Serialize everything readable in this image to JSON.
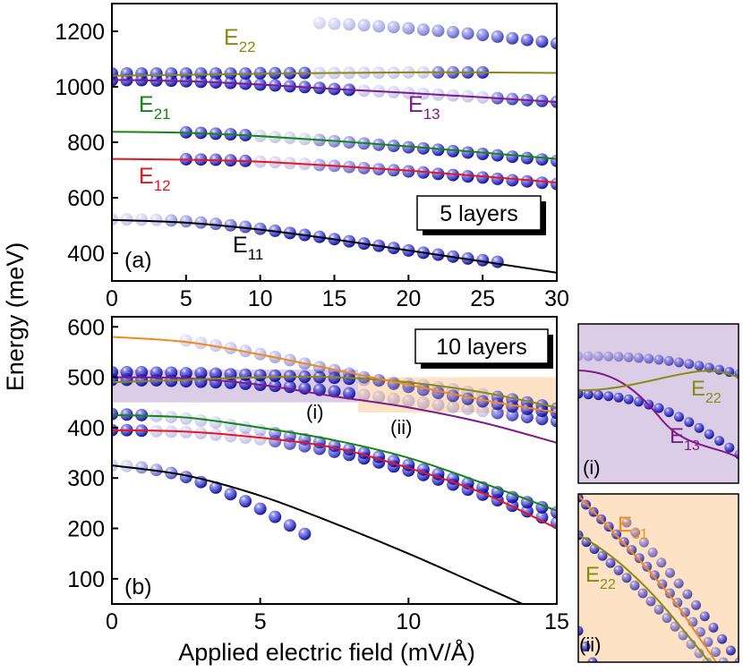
{
  "figure": {
    "ylabel": "Energy (meV)",
    "xlabel": "Applied electric field (mV/Å)"
  },
  "colors": {
    "dot": "#1a1ad6",
    "E11": "#000000",
    "E12": "#e8141e",
    "E21": "#118811",
    "E22": "#8a8a12",
    "E13": "#7f1a8a",
    "E31": "#f08a1a",
    "highlight_purple": "#dccde6",
    "highlight_orange": "#fde2c6"
  },
  "chart_data": [
    {
      "id": "a",
      "type": "scatter",
      "panel_label": "(a)",
      "title": "5 layers",
      "xlim": [
        0,
        30
      ],
      "ylim": [
        300,
        1300
      ],
      "xticks": [
        0,
        5,
        10,
        15,
        20,
        25,
        30
      ],
      "yticks": [
        400,
        600,
        800,
        1000,
        1200
      ],
      "lines": [
        {
          "name": "E11",
          "label_main": "E",
          "label_sub": "11",
          "x": [
            0,
            5,
            10,
            15,
            20,
            25,
            30
          ],
          "y": [
            520,
            510,
            485,
            450,
            410,
            370,
            330
          ]
        },
        {
          "name": "E12",
          "label_main": "E",
          "label_sub": "12",
          "x": [
            0,
            5,
            10,
            15,
            20,
            25,
            30
          ],
          "y": [
            740,
            737,
            730,
            715,
            698,
            677,
            655
          ]
        },
        {
          "name": "E21",
          "label_main": "E",
          "label_sub": "21",
          "x": [
            0,
            5,
            10,
            15,
            20,
            25,
            30
          ],
          "y": [
            838,
            834,
            822,
            805,
            785,
            763,
            740
          ]
        },
        {
          "name": "E22",
          "label_main": "E",
          "label_sub": "22",
          "x": [
            0,
            5,
            10,
            15,
            20,
            25,
            30
          ],
          "y": [
            1040,
            1043,
            1047,
            1050,
            1052,
            1052,
            1050
          ]
        },
        {
          "name": "E13",
          "label_main": "E",
          "label_sub": "13",
          "x": [
            0,
            5,
            10,
            15,
            20,
            25,
            30
          ],
          "y": [
            1025,
            1020,
            1008,
            992,
            978,
            962,
            945
          ]
        }
      ],
      "dot_series": [
        {
          "x": [
            0,
            1,
            2,
            3,
            4,
            5,
            6,
            7,
            8,
            9,
            10,
            11,
            12,
            13,
            14,
            15,
            16,
            17,
            18,
            19,
            20,
            21,
            22,
            23,
            24,
            25,
            26
          ],
          "y": [
            522,
            522,
            521,
            520,
            518,
            515,
            511,
            506,
            501,
            495,
            488,
            481,
            473,
            466,
            459,
            451,
            443,
            435,
            427,
            419,
            410,
            402,
            395,
            388,
            381,
            375,
            369
          ],
          "fade": [
            0,
            0.13,
            0.33
          ]
        },
        {
          "x": [
            5,
            6,
            7,
            8,
            9,
            10,
            11,
            12,
            13,
            14,
            15,
            16,
            17,
            18,
            19,
            20,
            21,
            22,
            23,
            24,
            25,
            26,
            27,
            28,
            29,
            30
          ],
          "y": [
            739,
            738,
            737,
            735,
            733,
            730,
            728,
            725,
            722,
            718,
            715,
            711,
            707,
            703,
            699,
            695,
            691,
            686,
            682,
            677,
            673,
            668,
            663,
            659,
            654,
            650
          ],
          "fade": [
            0.2,
            0.15,
            0.38
          ]
        },
        {
          "x": [
            5,
            6,
            7,
            8,
            9,
            10,
            11,
            12,
            13,
            14,
            15,
            16,
            17,
            18,
            19,
            20,
            21,
            22,
            23,
            24,
            25,
            26,
            27,
            28,
            29,
            30
          ],
          "y": [
            836,
            834,
            831,
            829,
            826,
            823,
            819,
            816,
            812,
            808,
            804,
            800,
            796,
            791,
            787,
            782,
            778,
            773,
            768,
            763,
            758,
            753,
            748,
            743,
            738,
            733
          ],
          "fade": [
            0.2,
            0.15,
            0.38
          ]
        },
        {
          "x": [
            0,
            1,
            2,
            3,
            4,
            5,
            6,
            7,
            8,
            9,
            10,
            11,
            12,
            13,
            14,
            15,
            16,
            17,
            18,
            19,
            20,
            21,
            22,
            23,
            24,
            25
          ],
          "y": [
            1048,
            1048,
            1048,
            1048,
            1048,
            1048,
            1048,
            1048,
            1048,
            1048,
            1049,
            1049,
            1049,
            1050,
            1050,
            1050,
            1050,
            1051,
            1051,
            1051,
            1052,
            1052,
            1052,
            1052,
            1052,
            1052
          ],
          "fade": [
            0.55,
            0.3,
            0.84
          ]
        },
        {
          "x": [
            0,
            1,
            2,
            3,
            4,
            5,
            6,
            7,
            8,
            9,
            10,
            11,
            12,
            13,
            14,
            15,
            16,
            17,
            18,
            19,
            20,
            21,
            22,
            23,
            24,
            25,
            26,
            27,
            28,
            29,
            30
          ],
          "y": [
            1024,
            1024,
            1024,
            1023,
            1022,
            1020,
            1018,
            1016,
            1014,
            1011,
            1008,
            1005,
            1002,
            999,
            996,
            992,
            989,
            986,
            984,
            981,
            978,
            975,
            972,
            969,
            966,
            962,
            959,
            956,
            952,
            949,
            946
          ],
          "fade": [
            0.55,
            0.3,
            0.84
          ]
        },
        {
          "x": [
            14,
            15,
            16,
            17,
            18,
            19,
            20,
            21,
            22,
            23,
            24,
            25,
            26,
            27,
            28,
            29,
            30
          ],
          "y": [
            1230,
            1227,
            1225,
            1222,
            1218,
            1215,
            1211,
            1206,
            1202,
            1197,
            1192,
            1187,
            1181,
            1175,
            1169,
            1163,
            1157
          ],
          "fade": [
            1,
            0.12,
            1
          ]
        }
      ],
      "annotations": {
        "box_label": "5 layers"
      }
    },
    {
      "id": "b",
      "type": "scatter",
      "panel_label": "(b)",
      "title": "10 layers",
      "xlim": [
        0,
        15
      ],
      "ylim": [
        50,
        620
      ],
      "xticks": [
        0,
        5,
        10,
        15
      ],
      "yticks": [
        100,
        200,
        300,
        400,
        500,
        600
      ],
      "lines": [
        {
          "name": "E11",
          "x": [
            0,
            2.5,
            5,
            7.5,
            10,
            12.5,
            15
          ],
          "y": [
            325,
            305,
            265,
            210,
            150,
            85,
            20
          ]
        },
        {
          "name": "E12",
          "x": [
            0,
            2.5,
            5,
            7.5,
            10,
            12.5,
            15
          ],
          "y": [
            395,
            392,
            380,
            360,
            320,
            270,
            200
          ]
        },
        {
          "name": "E21",
          "x": [
            0,
            2.5,
            5,
            7.5,
            10,
            12.5,
            15
          ],
          "y": [
            425,
            420,
            400,
            375,
            340,
            290,
            235
          ]
        },
        {
          "name": "E13",
          "x": [
            0,
            2.5,
            5,
            7.5,
            10,
            12.5,
            15
          ],
          "y": [
            500,
            498,
            485,
            462,
            440,
            410,
            370
          ]
        },
        {
          "name": "E22",
          "x": [
            0,
            2.5,
            5,
            7.5,
            10,
            12.5,
            15
          ],
          "y": [
            490,
            495,
            500,
            500,
            490,
            470,
            440
          ]
        },
        {
          "name": "E31",
          "x": [
            0,
            2.5,
            5,
            7.5,
            10,
            12.5,
            15
          ],
          "y": [
            580,
            570,
            545,
            515,
            485,
            455,
            430
          ]
        }
      ],
      "dot_series": [
        {
          "x": [
            0,
            0.5,
            1,
            1.5,
            2,
            2.5,
            3,
            3.5,
            4,
            4.5,
            5,
            5.5,
            6,
            6.5
          ],
          "y": [
            325,
            324,
            321,
            316,
            310,
            302,
            292,
            281,
            268,
            254,
            239,
            223,
            206,
            189
          ],
          "fade": [
            0,
            0.15,
            0.3
          ]
        },
        {
          "x": [
            0,
            0.5,
            1,
            1.5,
            2,
            2.5,
            3,
            3.5,
            4,
            4.5,
            5,
            5.5,
            6,
            6.5,
            7,
            7.5,
            8,
            8.5,
            9,
            9.5,
            10,
            10.5,
            11,
            11.5,
            12,
            12.5,
            13,
            13.5,
            14,
            14.5,
            15
          ],
          "y": [
            395,
            395,
            394,
            393,
            392,
            391,
            389,
            386,
            383,
            380,
            377,
            373,
            368,
            363,
            358,
            352,
            346,
            339,
            331,
            323,
            315,
            306,
            297,
            287,
            277,
            267,
            256,
            245,
            234,
            222,
            211
          ],
          "fade": [
            0.1,
            0.25,
            0.5
          ]
        },
        {
          "x": [
            0,
            0.5,
            1,
            1.5,
            2,
            2.5,
            3,
            3.5,
            4,
            4.5,
            5,
            5.5,
            6,
            6.5,
            7,
            7.5,
            8,
            8.5,
            9,
            9.5,
            10,
            10.5,
            11,
            11.5,
            12,
            12.5,
            13,
            13.5,
            14,
            14.5,
            15
          ],
          "y": [
            427,
            426,
            425,
            423,
            421,
            418,
            414,
            410,
            405,
            400,
            395,
            389,
            383,
            377,
            371,
            364,
            357,
            350,
            342,
            334,
            326,
            317,
            308,
            299,
            290,
            281,
            272,
            262,
            252,
            242,
            232
          ],
          "fade": [
            0.1,
            0.25,
            0.5
          ]
        },
        {
          "x": [
            0,
            0.5,
            1,
            1.5,
            2,
            2.5,
            3,
            3.5,
            4,
            4.5,
            5,
            5.5,
            6,
            6.5,
            7,
            7.5,
            8,
            8.5,
            9,
            9.5,
            10,
            10.5,
            11,
            11.5,
            12,
            12.5,
            13,
            13.5,
            14,
            14.5,
            15
          ],
          "y": [
            495,
            495,
            494,
            494,
            493,
            492,
            491,
            490,
            489,
            487,
            485,
            483,
            481,
            478,
            475,
            472,
            468,
            465,
            461,
            457,
            453,
            449,
            445,
            441,
            437,
            433,
            429,
            425,
            421,
            417,
            413
          ],
          "fade": [
            0.55,
            0.3,
            0.8
          ]
        },
        {
          "x": [
            0,
            0.5,
            1,
            1.5,
            2,
            2.5,
            3,
            3.5,
            4,
            4.5,
            5,
            5.5,
            6,
            6.5,
            7,
            7.5,
            8,
            8.5,
            9,
            9.5,
            10,
            10.5,
            11,
            11.5,
            12,
            12.5,
            13,
            13.5,
            14,
            14.5,
            15
          ],
          "y": [
            510,
            510,
            510,
            509,
            509,
            508,
            508,
            507,
            506,
            505,
            504,
            503,
            502,
            501,
            500,
            499,
            497,
            495,
            493,
            490,
            487,
            484,
            480,
            476,
            471,
            466,
            461,
            456,
            450,
            444,
            438
          ],
          "fade": [
            0.55,
            0.3,
            0.8
          ]
        },
        {
          "x": [
            2.5,
            3,
            3.5,
            4,
            4.5,
            5,
            5.5,
            6,
            6.5,
            7,
            7.5,
            8,
            8.5,
            9,
            9.5,
            10,
            10.5,
            11,
            11.5,
            12,
            12.5,
            13,
            13.5,
            14,
            14.5,
            15
          ],
          "y": [
            573,
            568,
            563,
            558,
            552,
            546,
            540,
            534,
            527,
            520,
            514,
            507,
            500,
            494,
            487,
            481,
            475,
            469,
            463,
            457,
            452,
            447,
            442,
            437,
            433,
            429
          ],
          "fade": [
            1,
            0.15,
            1
          ]
        }
      ],
      "highlights": [
        {
          "name": "purple-band",
          "x": [
            0,
            8.3
          ],
          "y": [
            450,
            515
          ]
        },
        {
          "name": "orange-band",
          "x": [
            8.3,
            15
          ],
          "y": [
            430,
            500
          ]
        }
      ],
      "annotations": {
        "box_label": "10 layers",
        "marker_i": "(i)",
        "marker_ii": "(ii)"
      }
    }
  ],
  "insets": {
    "i": {
      "label": "(i)",
      "E22": "E",
      "E22_sub": "22",
      "E13": "E",
      "E13_sub": "13"
    },
    "ii": {
      "label": "(ii)",
      "E31": "E",
      "E31_sub": "31",
      "E22": "E",
      "E22_sub": "22"
    }
  }
}
